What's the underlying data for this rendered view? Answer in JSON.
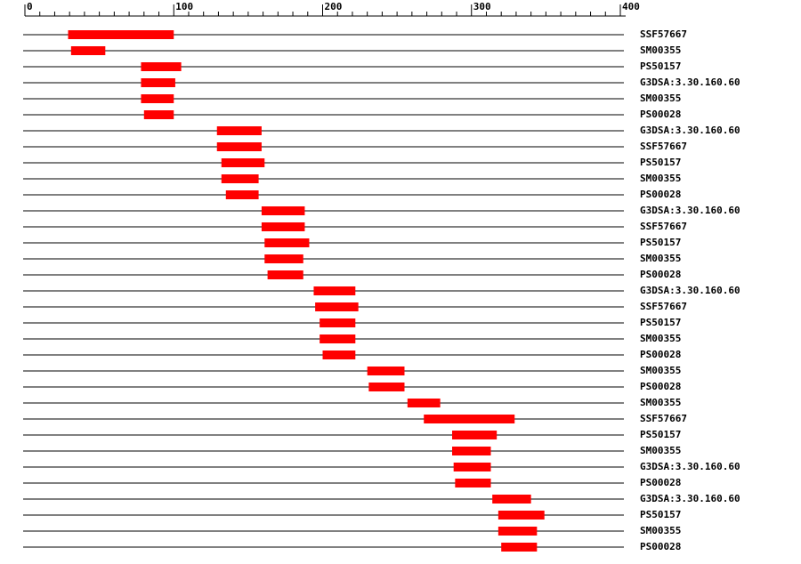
{
  "chart_data": {
    "type": "range",
    "categories": [
      "SSF57667",
      "SM00355",
      "PS50157",
      "G3DSA:3.30.160.60",
      "SM00355",
      "PS00028",
      "G3DSA:3.30.160.60",
      "SSF57667",
      "PS50157",
      "SM00355",
      "PS00028",
      "G3DSA:3.30.160.60",
      "SSF57667",
      "PS50157",
      "SM00355",
      "PS00028",
      "G3DSA:3.30.160.60",
      "SSF57667",
      "PS50157",
      "SM00355",
      "PS00028",
      "SM00355",
      "PS00028",
      "SM00355",
      "SSF57667",
      "PS50157",
      "SM00355",
      "G3DSA:3.30.160.60",
      "PS00028",
      "G3DSA:3.30.160.60",
      "PS50157",
      "SM00355",
      "PS00028"
    ],
    "starts": [
      29,
      31,
      78,
      78,
      78,
      80,
      129,
      129,
      132,
      132,
      135,
      159,
      159,
      161,
      161,
      163,
      194,
      195,
      198,
      198,
      200,
      230,
      231,
      257,
      268,
      287,
      287,
      288,
      289,
      314,
      318,
      318,
      320
    ],
    "ends": [
      100,
      54,
      105,
      101,
      100,
      100,
      159,
      159,
      161,
      157,
      157,
      188,
      188,
      191,
      187,
      187,
      222,
      224,
      222,
      222,
      222,
      255,
      255,
      279,
      329,
      317,
      313,
      313,
      313,
      340,
      349,
      344,
      344
    ],
    "color": "#ff0000",
    "xlim": [
      0,
      400
    ],
    "xticks": [
      0,
      100,
      200,
      300,
      400
    ],
    "xminorticks": [
      10,
      20,
      30,
      40,
      50,
      60,
      70,
      80,
      90,
      110,
      120,
      130,
      140,
      150,
      160,
      170,
      180,
      190,
      210,
      220,
      230,
      240,
      250,
      260,
      270,
      280,
      290,
      310,
      320,
      330,
      340,
      350,
      360,
      370,
      380,
      390
    ]
  }
}
